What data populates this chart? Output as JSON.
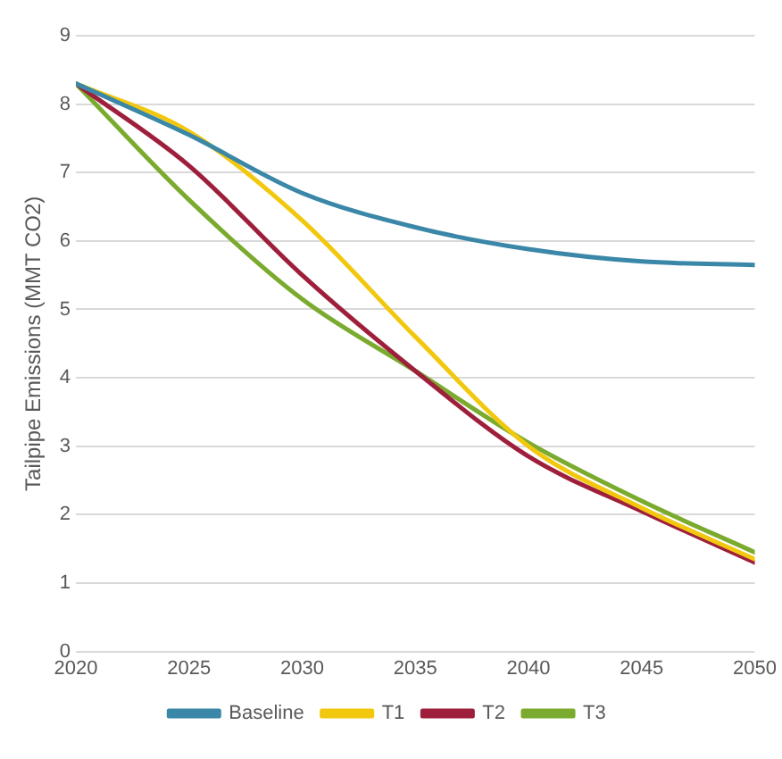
{
  "chart_data": {
    "type": "line",
    "ylabel": "Tailpipe Emissions (MMT CO2)",
    "x": [
      2020,
      2025,
      2030,
      2035,
      2040,
      2045,
      2050
    ],
    "series": [
      {
        "name": "Baseline",
        "color": "#3a87a8",
        "values": [
          8.3,
          7.55,
          6.7,
          6.2,
          5.88,
          5.7,
          5.65
        ]
      },
      {
        "name": "T1",
        "color": "#f2c80f",
        "values": [
          8.3,
          7.6,
          6.3,
          4.6,
          3.0,
          2.1,
          1.35
        ]
      },
      {
        "name": "T2",
        "color": "#9e1f3c",
        "values": [
          8.3,
          7.1,
          5.5,
          4.1,
          2.85,
          2.05,
          1.3
        ]
      },
      {
        "name": "T3",
        "color": "#7aab2e",
        "values": [
          8.3,
          6.6,
          5.15,
          4.1,
          3.05,
          2.2,
          1.45
        ]
      }
    ],
    "xlim": [
      2020,
      2050
    ],
    "xticks": [
      2020,
      2025,
      2030,
      2035,
      2040,
      2045,
      2050
    ],
    "ylim": [
      0,
      9
    ],
    "yticks": [
      0,
      1,
      2,
      3,
      4,
      5,
      6,
      7,
      8,
      9
    ],
    "grid": "y",
    "legend": "bottom",
    "marker": "none",
    "line_style": "solid"
  }
}
